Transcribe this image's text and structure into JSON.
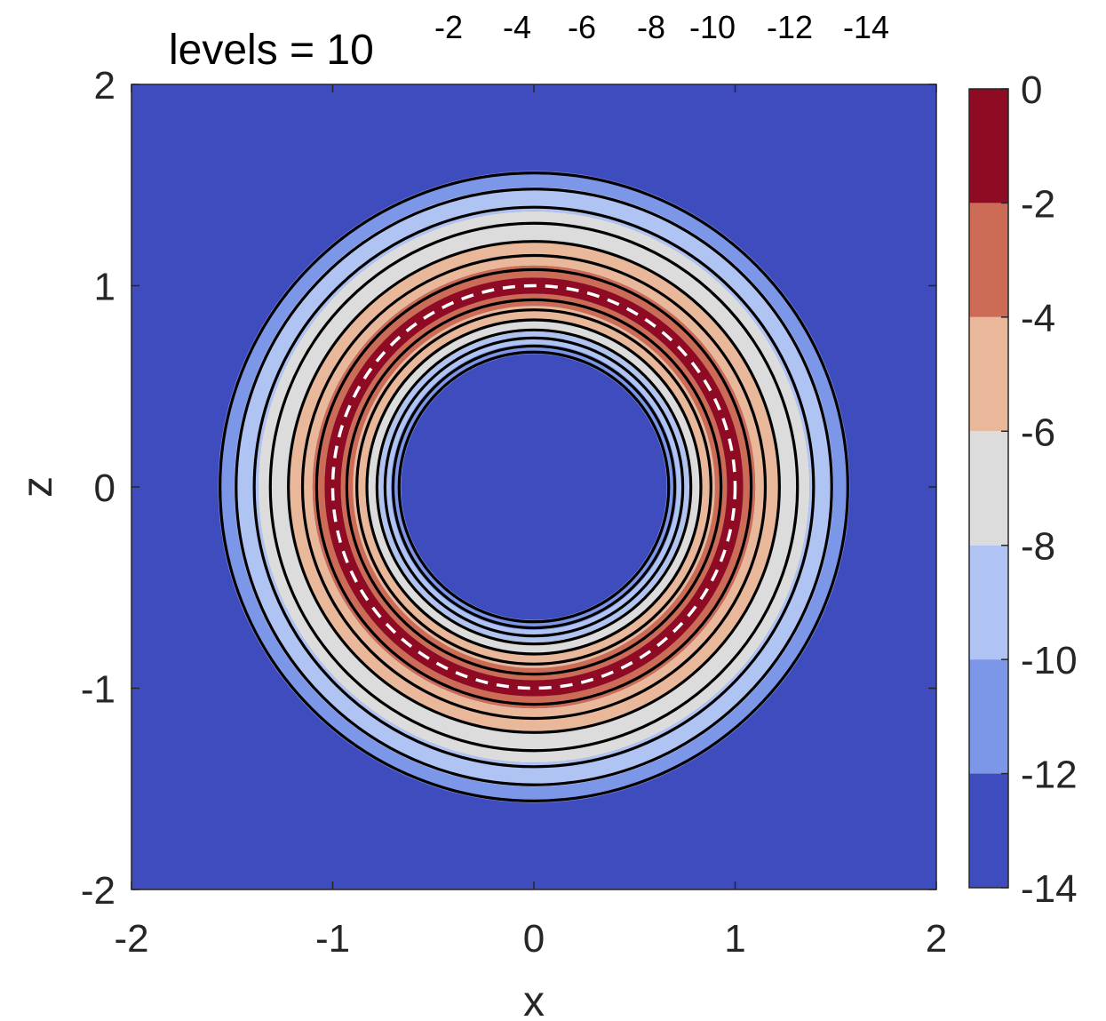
{
  "chart_data": {
    "type": "contour",
    "title_prefix": "levels = 10",
    "title_exponents": [
      "-2",
      "-4",
      "-6",
      "-8",
      "-10",
      "-12",
      "-14"
    ],
    "xlabel": "x",
    "ylabel": "z",
    "xlim": [
      -2,
      2
    ],
    "ylim": [
      -2,
      2
    ],
    "x_ticks": [
      -2,
      -1,
      0,
      1,
      2
    ],
    "y_ticks": [
      -2,
      -1,
      0,
      1,
      2
    ],
    "grid": false,
    "colorbar": {
      "limits": [
        -14,
        0
      ],
      "ticks": [
        0,
        -2,
        -4,
        -6,
        -8,
        -10,
        -12,
        -14
      ],
      "bands": [
        {
          "from": -2,
          "to": 0,
          "color": "#8f0a23"
        },
        {
          "from": -4,
          "to": -2,
          "color": "#cc6c57"
        },
        {
          "from": -6,
          "to": -4,
          "color": "#e9b79a"
        },
        {
          "from": -8,
          "to": -6,
          "color": "#dcdcdc"
        },
        {
          "from": -10,
          "to": -8,
          "color": "#b0c4f4"
        },
        {
          "from": -12,
          "to": -10,
          "color": "#7d97e8"
        },
        {
          "from": -14,
          "to": -12,
          "color": "#3f4cbd"
        }
      ]
    },
    "rings": [
      {
        "r_out": 1.57,
        "r_in": 1.49,
        "color": "#7d97e8"
      },
      {
        "r_out": 1.49,
        "r_in": 1.37,
        "color": "#b0c4f4"
      },
      {
        "r_out": 1.37,
        "r_in": 1.22,
        "color": "#dcdcdc"
      },
      {
        "r_out": 1.22,
        "r_in": 1.1,
        "color": "#e9b79a"
      },
      {
        "r_out": 1.1,
        "r_in": 1.04,
        "color": "#cc6c57"
      },
      {
        "r_out": 1.04,
        "r_in": 0.96,
        "color": "#8f0a23"
      },
      {
        "r_out": 0.96,
        "r_in": 0.9,
        "color": "#cc6c57"
      },
      {
        "r_out": 0.9,
        "r_in": 0.83,
        "color": "#e9b79a"
      },
      {
        "r_out": 0.83,
        "r_in": 0.77,
        "color": "#dcdcdc"
      },
      {
        "r_out": 0.77,
        "r_in": 0.71,
        "color": "#b0c4f4"
      },
      {
        "r_out": 0.71,
        "r_in": 0.66,
        "color": "#7d97e8"
      }
    ],
    "contour_radii": [
      1.56,
      1.48,
      1.39,
      1.31,
      1.22,
      1.15,
      1.08,
      0.93,
      0.88,
      0.83,
      0.78,
      0.74,
      0.7,
      0.67
    ],
    "dashed_circle_radius": 1.0,
    "background_color": "#3f4cbd"
  }
}
